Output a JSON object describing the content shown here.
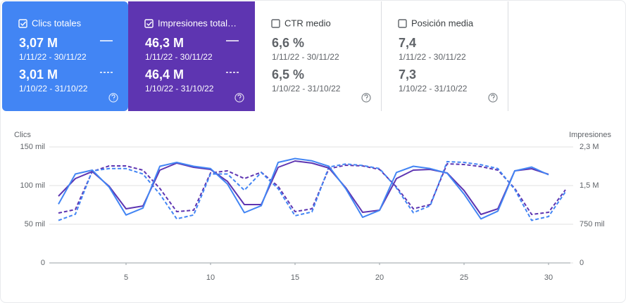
{
  "cards": [
    {
      "label": "Clics totales",
      "checked": true,
      "bg": "#4285f4",
      "values": [
        {
          "value": "3,07 M",
          "range": "1/11/22 - 30/11/22"
        },
        {
          "value": "3,01 M",
          "range": "1/10/22 - 31/10/22"
        }
      ]
    },
    {
      "label": "Impresiones total…",
      "checked": true,
      "bg": "#5e35b1",
      "values": [
        {
          "value": "46,3 M",
          "range": "1/11/22 - 30/11/22"
        },
        {
          "value": "46,4 M",
          "range": "1/10/22 - 31/10/22"
        }
      ]
    },
    {
      "label": "CTR medio",
      "checked": false,
      "bg": "#ffffff",
      "values": [
        {
          "value": "6,6 %",
          "range": "1/11/22 - 30/11/22"
        },
        {
          "value": "6,5 %",
          "range": "1/10/22 - 31/10/22"
        }
      ]
    },
    {
      "label": "Posición media",
      "checked": false,
      "bg": "#ffffff",
      "values": [
        {
          "value": "7,4",
          "range": "1/11/22 - 30/11/22"
        },
        {
          "value": "7,3",
          "range": "1/10/22 - 31/10/22"
        }
      ]
    }
  ],
  "chart_data": {
    "type": "line",
    "y_label": "Clics",
    "y2_label": "Impresiones",
    "x": [
      1,
      2,
      3,
      4,
      5,
      6,
      7,
      8,
      9,
      10,
      11,
      12,
      13,
      14,
      15,
      16,
      17,
      18,
      19,
      20,
      21,
      22,
      23,
      24,
      25,
      26,
      27,
      28,
      29,
      30,
      31
    ],
    "xlim": [
      0.5,
      31.5
    ],
    "xticks": [
      5,
      10,
      15,
      20,
      25,
      30
    ],
    "ylim": [
      0,
      150000
    ],
    "yticks": [
      0,
      {
        "value": 50000,
        "label": "50 mil"
      },
      {
        "value": 100000,
        "label": "100 mil"
      },
      {
        "value": 150000,
        "label": "150 mil"
      }
    ],
    "y2lim": [
      0,
      2250000
    ],
    "y2ticks": [
      0,
      {
        "value": 750000,
        "label": "750 mil"
      },
      {
        "value": 1500000,
        "label": "1,5 M"
      },
      {
        "value": 2250000,
        "label": "2,3 M"
      }
    ],
    "grid": true,
    "series": [
      {
        "color": "#5e35b1",
        "axis": "y2",
        "dashed": true,
        "values": [
          968000,
          1036000,
          1773000,
          1882000,
          1882000,
          1800000,
          1445000,
          995000,
          1023000,
          1745000,
          1786000,
          1636000,
          1759000,
          1486000,
          995000,
          1050000,
          1827000,
          1895000,
          1882000,
          1814000,
          1473000,
          1050000,
          1132000,
          1923000,
          1909000,
          1868000,
          1800000,
          1445000,
          941000,
          982000,
          1418000
        ]
      },
      {
        "color": "#4285f4",
        "dashed": true,
        "values": [
          55000,
          63000,
          119000,
          122000,
          122000,
          115000,
          89000,
          57000,
          62000,
          115000,
          115000,
          94000,
          117000,
          96000,
          61000,
          66000,
          124000,
          128000,
          126000,
          122000,
          97000,
          65000,
          74000,
          131000,
          130000,
          127000,
          122000,
          95000,
          55000,
          60000,
          92000
        ]
      },
      {
        "color": "#5e35b1",
        "axis": "y2",
        "dashed": false,
        "values": [
          1295000,
          1636000,
          1773000,
          1486000,
          1050000,
          1105000,
          1800000,
          1936000,
          1855000,
          1814000,
          1582000,
          1132000,
          1132000,
          1855000,
          1977000,
          1936000,
          1841000,
          1459000,
          982000,
          1023000,
          1636000,
          1800000,
          1814000,
          1745000,
          1405000,
          941000,
          1050000,
          1786000,
          1827000,
          1718000,
          null
        ]
      },
      {
        "color": "#4285f4",
        "dashed": false,
        "values": [
          76000,
          115000,
          120000,
          98000,
          62000,
          71000,
          125000,
          130000,
          125000,
          122000,
          102000,
          65000,
          74000,
          130000,
          135000,
          132000,
          125000,
          96000,
          59000,
          68000,
          117000,
          125000,
          122000,
          116000,
          89000,
          57000,
          67000,
          119000,
          124000,
          114000,
          null
        ]
      }
    ]
  }
}
